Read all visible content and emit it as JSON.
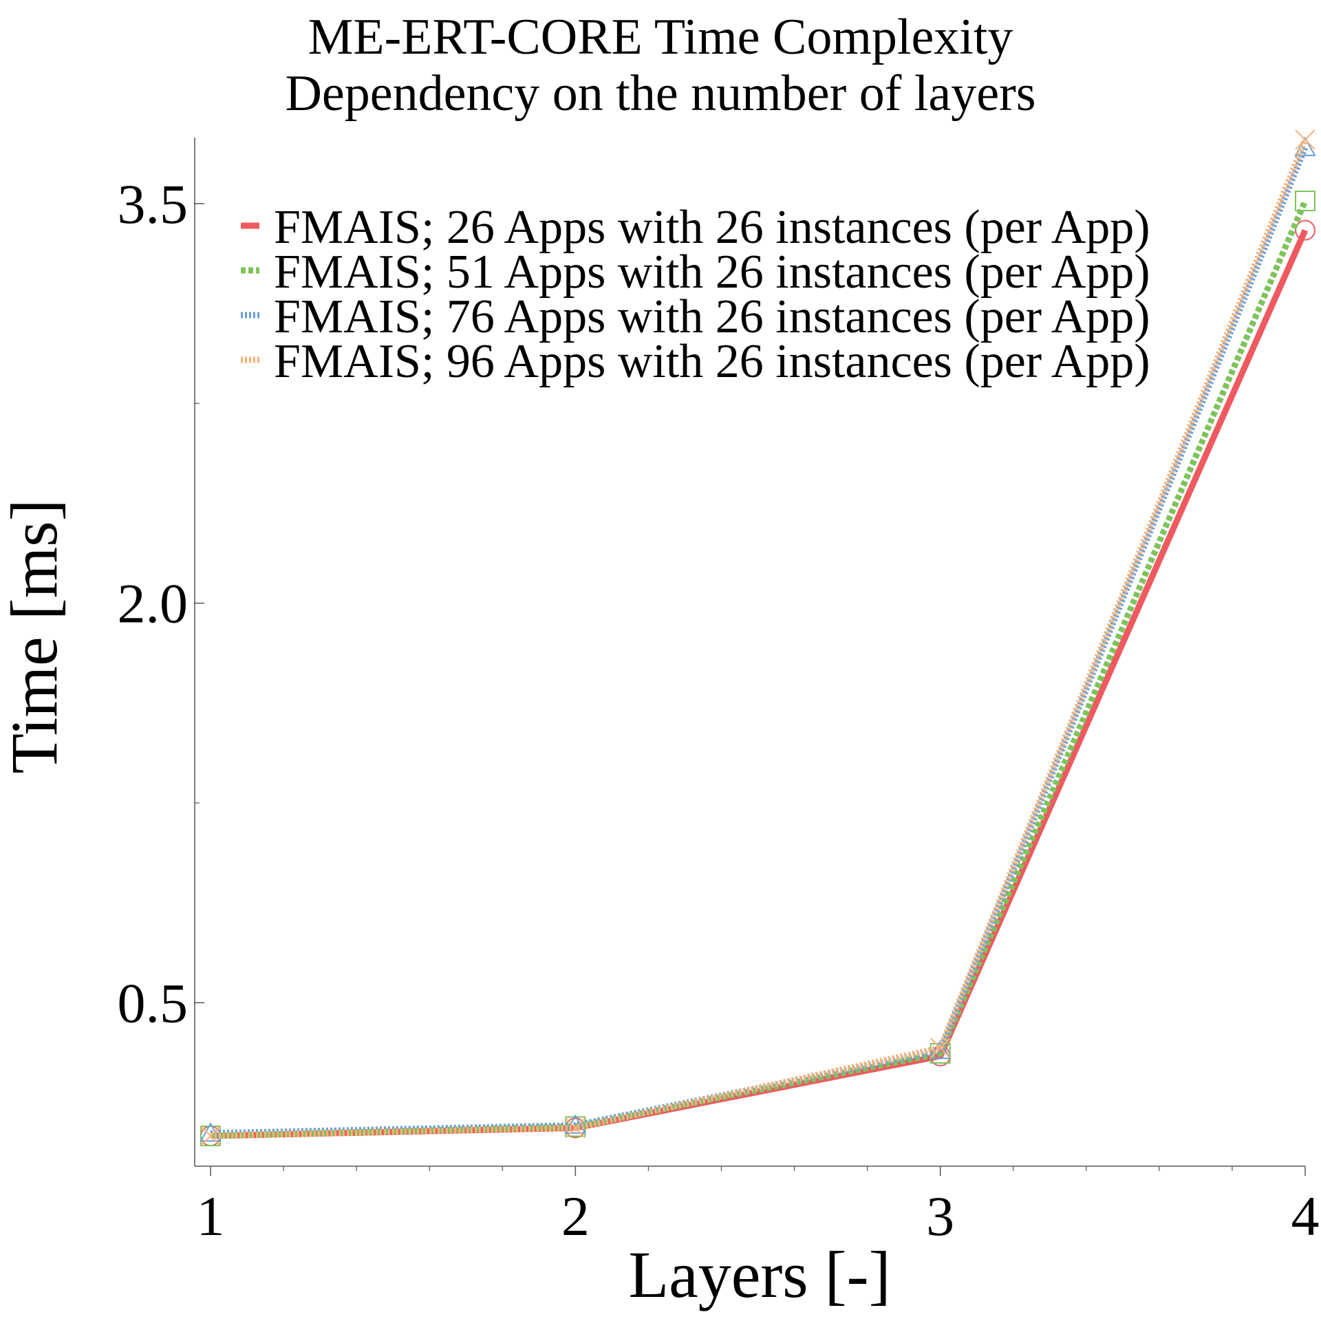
{
  "chart_data": {
    "type": "line",
    "title": "ME-ERT-CORE Time Complexity",
    "subtitle": "Dependency on the number of layers",
    "xlabel": "Layers [-]",
    "ylabel": "Time [ms]",
    "x": [
      1,
      2,
      3,
      4
    ],
    "xlim": [
      1,
      4
    ],
    "ylim": [
      0.0,
      3.74
    ],
    "xticks": [
      "1",
      "2",
      "3",
      "4"
    ],
    "yticks": [
      {
        "value": 0.5,
        "label": "0.5"
      },
      {
        "value": 2.0,
        "label": "2.0"
      },
      {
        "value": 3.5,
        "label": "3.5"
      }
    ],
    "grid": false,
    "legend_position": "top-left",
    "series": [
      {
        "name": "FMAIS; 26 Apps with 26 instances (per App)",
        "values": [
          0.0,
          0.03,
          0.3,
          3.4
        ],
        "color": "#ee5a5f",
        "dash": "solid",
        "marker": "circle"
      },
      {
        "name": "FMAIS; 51 Apps with 26 instances (per App)",
        "values": [
          0.0,
          0.035,
          0.31,
          3.51
        ],
        "color": "#7dc35a",
        "dash": "dashed",
        "marker": "square"
      },
      {
        "name": "FMAIS; 76 Apps with 26 instances (per App)",
        "values": [
          0.01,
          0.04,
          0.32,
          3.71
        ],
        "color": "#6a9fd8",
        "dash": "dotted",
        "marker": "triangle"
      },
      {
        "name": "FMAIS; 96 Apps with 26 instances (per App)",
        "values": [
          0.0,
          0.03,
          0.33,
          3.74
        ],
        "color": "#f6b27a",
        "dash": "dotted",
        "marker": "x"
      }
    ]
  }
}
